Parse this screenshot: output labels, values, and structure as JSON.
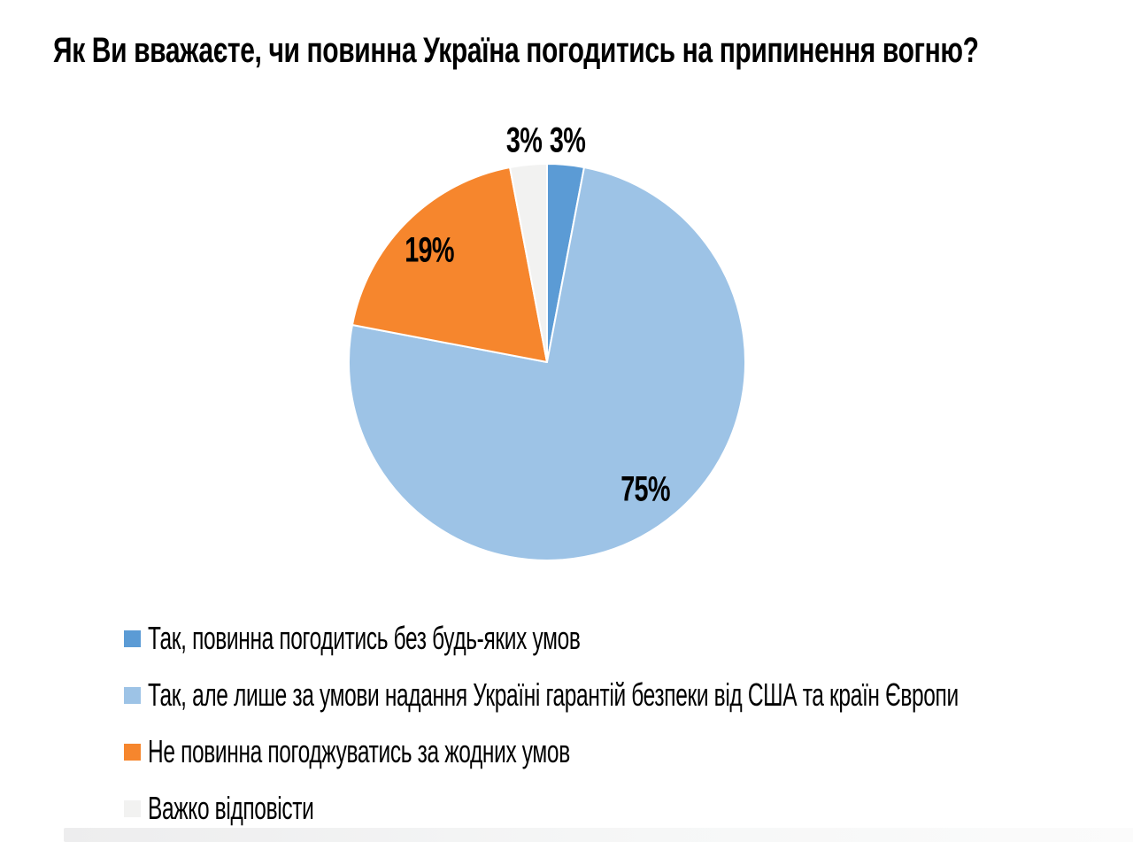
{
  "title": "Як Ви вважаєте, чи повинна Україна погодитись на припинення вогню?",
  "chart_data": {
    "type": "pie",
    "title": "Як Ви вважаєте, чи повинна Україна погодитись на припинення вогню?",
    "unit": "%",
    "start_angle_deg": 0,
    "direction": "clockwise",
    "legend_position": "bottom-left",
    "slices": [
      {
        "label": "Так, повинна погодитись без будь-яких умов",
        "value": 3,
        "pct_label": "3%",
        "color": "#5B9BD5"
      },
      {
        "label": "Так, але лише за умови надання Україні гарантій безпеки від США та країн Європи",
        "value": 75,
        "pct_label": "75%",
        "color": "#9DC3E6"
      },
      {
        "label": "Не повинна погоджуватись за жодних умов",
        "value": 19,
        "pct_label": "19%",
        "color": "#F6862D"
      },
      {
        "label": "Важко відповісти",
        "value": 3,
        "pct_label": "3%",
        "color": "#F2F2F1"
      }
    ]
  }
}
